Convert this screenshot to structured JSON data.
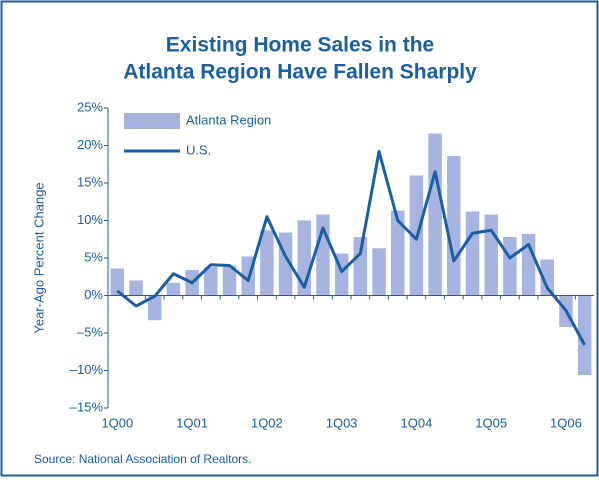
{
  "chart_data": {
    "type": "bar_line",
    "title": [
      "Existing Home Sales in the",
      "Atlanta Region Have Fallen Sharply"
    ],
    "y_label": "Year-Ago Percent Change",
    "source": "Source: National Association of Realtors.",
    "categories": [
      "1Q00",
      null,
      null,
      null,
      "1Q01",
      null,
      null,
      null,
      "1Q02",
      null,
      null,
      null,
      "1Q03",
      null,
      null,
      null,
      "1Q04",
      null,
      null,
      null,
      "1Q05",
      null,
      null,
      null,
      "1Q06",
      null
    ],
    "series": [
      {
        "name": "Atlanta Region",
        "type": "bar",
        "color": "#a7b4e0",
        "values": [
          3.6,
          2.0,
          -3.3,
          1.7,
          3.4,
          3.8,
          4.0,
          5.2,
          8.7,
          8.4,
          10.0,
          10.8,
          5.6,
          7.8,
          6.3,
          11.3,
          16.0,
          21.6,
          18.6,
          11.2,
          10.8,
          7.8,
          8.2,
          4.8,
          -4.2,
          -10.6
        ]
      },
      {
        "name": "U.S.",
        "type": "line",
        "color": "#1a5fa3",
        "values": [
          0.6,
          -1.4,
          -0.1,
          2.9,
          1.7,
          4.1,
          4.0,
          2.0,
          10.5,
          5.2,
          1.1,
          9.0,
          3.2,
          5.6,
          19.2,
          10.0,
          7.5,
          16.5,
          4.6,
          8.3,
          8.7,
          5.0,
          6.8,
          1.0,
          -2.0,
          -6.6
        ]
      }
    ],
    "ylim": [
      -15,
      25
    ],
    "yticks": [
      {
        "value": -15,
        "label": "–15%"
      },
      {
        "value": -10,
        "label": "–10%"
      },
      {
        "value": -5,
        "label": "–5%"
      },
      {
        "value": 0,
        "label": "0%"
      },
      {
        "value": 5,
        "label": "5%"
      },
      {
        "value": 10,
        "label": "10%"
      },
      {
        "value": 15,
        "label": "15%"
      },
      {
        "value": 20,
        "label": "20%"
      },
      {
        "value": 25,
        "label": "25%"
      }
    ],
    "legend": "upper left"
  }
}
